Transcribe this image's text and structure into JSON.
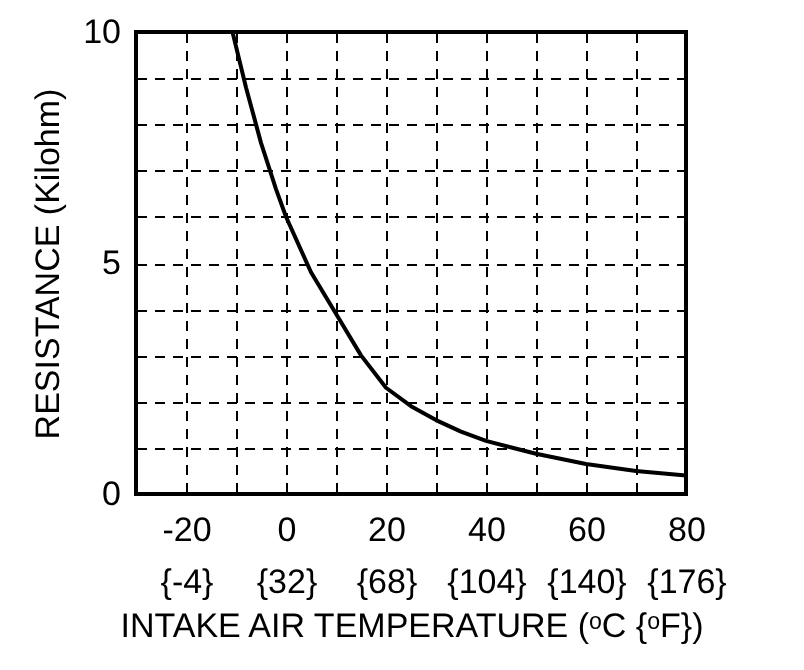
{
  "chart_data": {
    "type": "line",
    "xlabel": "INTAKE AIR TEMPERATURE (ᵒC {ᵒF})",
    "ylabel": "RESISTANCE (Kilohm)",
    "x": [
      -10.7,
      -8,
      -5,
      -2,
      0,
      5,
      10,
      15,
      20,
      25,
      30,
      35,
      40,
      50,
      60,
      70,
      80
    ],
    "series": [
      {
        "color": "#000000",
        "values": [
          10,
          8.8,
          7.6,
          6.6,
          6.0,
          4.8,
          3.9,
          3.0,
          2.3,
          1.9,
          1.6,
          1.35,
          1.15,
          0.87,
          0.65,
          0.5,
          0.4
        ]
      }
    ],
    "xlim": [
      -30,
      80
    ],
    "xticks": [
      -20,
      {
        "value": -10,
        "label": null
      },
      0,
      {
        "value": 10,
        "label": null
      },
      20,
      {
        "value": 30,
        "label": null
      },
      40,
      {
        "value": 50,
        "label": null
      },
      60,
      {
        "value": 70,
        "label": null
      },
      80
    ],
    "x2lim": [
      -22,
      176
    ],
    "x2ticks": [
      {
        "value": -4,
        "label": "{-4}"
      },
      {
        "value": 32,
        "label": "{32}"
      },
      {
        "value": 68,
        "label": "{68}"
      },
      {
        "value": 104,
        "label": "{104}"
      },
      {
        "value": 140,
        "label": "{140}"
      },
      {
        "value": 176,
        "label": "{176}"
      }
    ],
    "ylim": [
      0,
      10
    ],
    "yticks": [
      0,
      {
        "value": 1,
        "label": null
      },
      {
        "value": 2,
        "label": null
      },
      {
        "value": 3,
        "label": null
      },
      {
        "value": 4,
        "label": null
      },
      5,
      {
        "value": 6,
        "label": null
      },
      {
        "value": 7,
        "label": null
      },
      {
        "value": 8,
        "label": null
      },
      {
        "value": 9,
        "label": null
      },
      10
    ],
    "grid": true,
    "marker": "none",
    "line_style": "solid"
  }
}
